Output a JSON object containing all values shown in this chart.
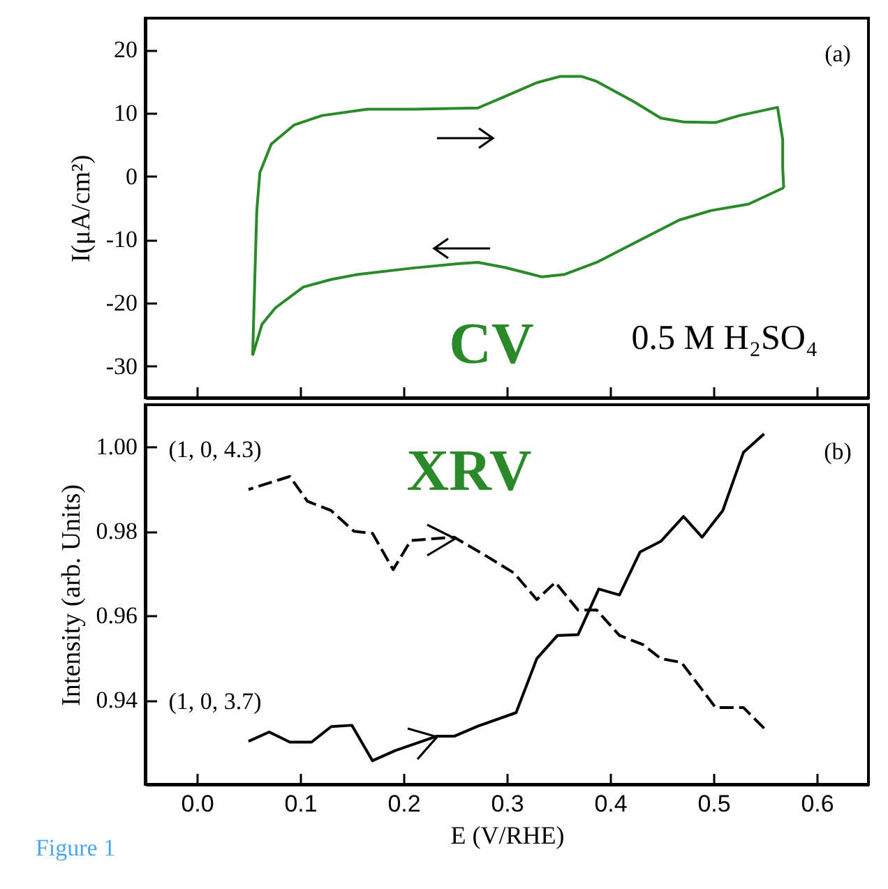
{
  "chart_data": [
    {
      "type": "line",
      "ylabel": "I(μA/cm²)",
      "annotations": [
        "(a)",
        "CV",
        "0.5 M H₂SO₄"
      ],
      "xlim": [
        -0.05,
        0.65
      ],
      "xticks": [
        0,
        0.1,
        0.2,
        0.3,
        0.4,
        0.5,
        0.6
      ],
      "ylim": [
        -35,
        25
      ],
      "yticks": [
        -30,
        -20,
        -10,
        0,
        10,
        20
      ],
      "tick_labels": "y",
      "grid": false,
      "series": [
        {
          "color": "#2a8a2a",
          "line_style": "solid",
          "x": [
            0.054,
            0.056,
            0.058,
            0.061,
            0.072,
            0.094,
            0.121,
            0.165,
            0.209,
            0.272,
            0.298,
            0.329,
            0.352,
            0.372,
            0.387,
            0.423,
            0.449,
            0.471,
            0.502,
            0.525,
            0.562,
            0.567,
            0.567,
            0.568
          ],
          "values": [
            -28.3,
            -16.6,
            -5.4,
            0.6,
            5.1,
            8.1,
            9.6,
            10.6,
            10.6,
            10.8,
            12.6,
            14.8,
            15.8,
            15.8,
            15.0,
            11.8,
            9.2,
            8.6,
            8.5,
            9.6,
            10.9,
            5.8,
            1.3,
            -1.8
          ]
        },
        {
          "color": "#2a8a2a",
          "line_style": "solid",
          "x": [
            0.568,
            0.534,
            0.498,
            0.467,
            0.431,
            0.387,
            0.356,
            0.334,
            0.298,
            0.272,
            0.254,
            0.209,
            0.156,
            0.13,
            0.103,
            0.076,
            0.063,
            0.054
          ],
          "values": [
            -1.8,
            -4.4,
            -5.4,
            -6.9,
            -9.9,
            -13.6,
            -15.5,
            -15.9,
            -14.4,
            -13.6,
            -13.8,
            -14.5,
            -15.5,
            -16.3,
            -17.5,
            -20.8,
            -23.4,
            -28.3
          ]
        }
      ]
    },
    {
      "type": "line",
      "xlabel": "E (V/RHE)",
      "ylabel": "Intensity (arb. Units)",
      "annotations": [
        "(b)",
        "XRV",
        "Figure 1"
      ],
      "xlim": [
        -0.05,
        0.65
      ],
      "xticks": [
        {
          "value": 0,
          "label": "0.0"
        },
        0.1,
        0.2,
        0.3,
        0.4,
        0.5,
        0.6
      ],
      "ylim": [
        0.92,
        1.01
      ],
      "yticks": [
        0.94,
        0.96,
        0.98,
        {
          "value": 1.0,
          "label": "1.00"
        }
      ],
      "grid": false,
      "series": [
        {
          "name": "(1, 0, 4.3)",
          "color": "#000000",
          "line_style": "dashed",
          "x": [
            0.05,
            0.09,
            0.107,
            0.13,
            0.152,
            0.17,
            0.19,
            0.207,
            0.249,
            0.281,
            0.307,
            0.329,
            0.347,
            0.369,
            0.387,
            0.409,
            0.432,
            0.449,
            0.469,
            0.502,
            0.529,
            0.549
          ],
          "values": [
            0.9899,
            0.993,
            0.9871,
            0.9849,
            0.98,
            0.9795,
            0.9709,
            0.9778,
            0.9786,
            0.974,
            0.9701,
            0.9638,
            0.9679,
            0.9613,
            0.9613,
            0.9553,
            0.9531,
            0.9498,
            0.9489,
            0.9382,
            0.9382,
            0.9333
          ]
        },
        {
          "name": "(1, 0, 3.7)",
          "color": "#000000",
          "line_style": "solid",
          "x": [
            0.05,
            0.07,
            0.09,
            0.111,
            0.13,
            0.15,
            0.17,
            0.192,
            0.232,
            0.249,
            0.272,
            0.309,
            0.329,
            0.349,
            0.369,
            0.389,
            0.409,
            0.429,
            0.449,
            0.471,
            0.489,
            0.509,
            0.529,
            0.549
          ],
          "values": [
            0.9302,
            0.9324,
            0.93,
            0.93,
            0.9337,
            0.934,
            0.9256,
            0.928,
            0.9314,
            0.9314,
            0.9338,
            0.937,
            0.9498,
            0.9553,
            0.9555,
            0.9663,
            0.9649,
            0.9751,
            0.9776,
            0.9835,
            0.9786,
            0.9849,
            0.9987,
            1.0031
          ]
        }
      ]
    }
  ]
}
